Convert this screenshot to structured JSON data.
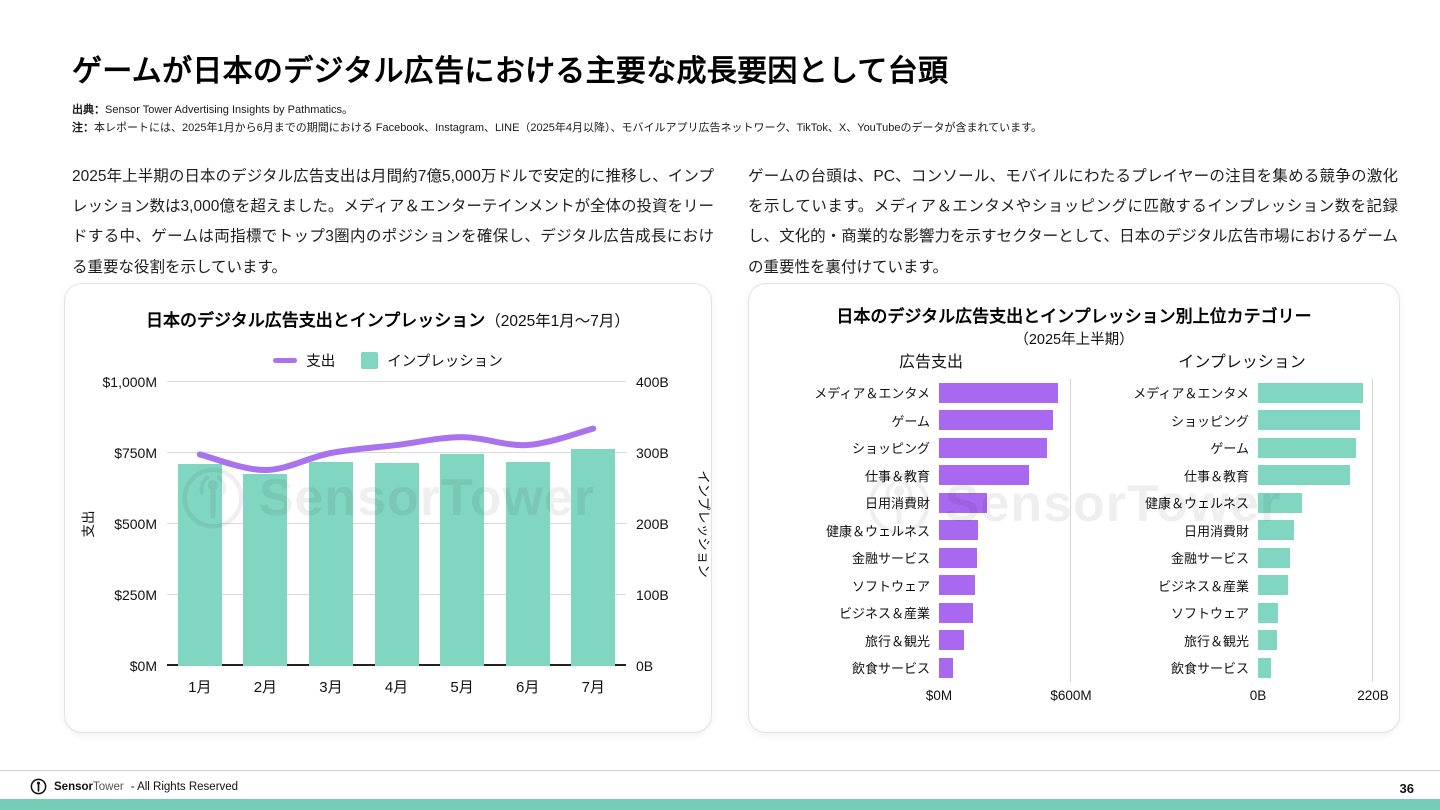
{
  "page": {
    "title": "ゲームが日本のデジタル広告における主要な成長要因として台頭",
    "source_label": "出典：",
    "source_text": "Sensor Tower Advertising Insights by Pathmatics。",
    "note_label": "注：",
    "note_text": "本レポートには、2025年1月から6月までの期間における Facebook、Instagram、LINE（2025年4月以降）、モバイルアプリ広告ネットワーク、TikTok、X、YouTubeのデータが含まれています。",
    "paragraph_left": "2025年上半期の日本のデジタル広告支出は月間約7億5,000万ドルで安定的に推移し、インプレッション数は3,000億を超えました。メディア＆エンターテインメントが全体の投資をリードする中、ゲームは両指標でトップ3圏内のポジションを確保し、デジタル広告成長における重要な役割を示しています。",
    "paragraph_right": "ゲームの台頭は、PC、コンソール、モバイルにわたるプレイヤーの注目を集める競争の激化を示しています。メディア＆エンタメやショッピングに匹敵するインプレッション数を記録し、文化的・商業的な影響力を示すセクターとして、日本のデジタル広告市場におけるゲームの重要性を裏付けています。",
    "watermark": "SensorTower",
    "footer": {
      "brand_bold": "Sensor",
      "brand_rest": "Tower",
      "rights_text": "- All Rights Reserved",
      "page_number": "36"
    }
  },
  "chart_data": [
    {
      "type": "bar-line-combo",
      "title_bold": "日本のデジタル広告支出とインプレッション",
      "title_suffix": "（2025年1月〜7月）",
      "categories": [
        "1月",
        "2月",
        "3月",
        "4月",
        "5月",
        "6月",
        "7月"
      ],
      "series": [
        {
          "name": "支出",
          "type": "line",
          "axis": "left",
          "color": "#a873ec",
          "values": [
            745,
            690,
            750,
            778,
            806,
            778,
            836
          ]
        },
        {
          "name": "インプレッション",
          "type": "bar",
          "axis": "right",
          "color": "#80d6c1",
          "values": [
            285,
            270,
            287,
            286,
            298,
            288,
            305
          ]
        }
      ],
      "left_axis": {
        "label": "支出",
        "unit": "$M",
        "min": 0,
        "max": 1000,
        "ticks": [
          "$0M",
          "$250M",
          "$500M",
          "$750M",
          "$1,000M"
        ]
      },
      "right_axis": {
        "label": "インプレッション",
        "unit": "B",
        "min": 0,
        "max": 400,
        "ticks": [
          "0B",
          "100B",
          "200B",
          "300B",
          "400B"
        ]
      },
      "grid": true,
      "legend_position": "top"
    },
    {
      "type": "bar",
      "orientation": "horizontal",
      "title": "日本のデジタル広告支出とインプレッション別上位カテゴリー",
      "subtitle": "（2025年上半期）",
      "panels": [
        {
          "name": "広告支出",
          "color": "#a868f0",
          "xlim": [
            0,
            600
          ],
          "tick_labels": [
            "$0M",
            "$600M"
          ],
          "categories": [
            "メディア＆エンタメ",
            "ゲーム",
            "ショッピング",
            "仕事＆教育",
            "日用消費財",
            "健康＆ウェルネス",
            "金融サービス",
            "ソフトウェア",
            "ビジネス＆産業",
            "旅行＆観光",
            "飲食サービス"
          ],
          "values": [
            545,
            523,
            495,
            410,
            218,
            178,
            175,
            164,
            156,
            114,
            64
          ]
        },
        {
          "name": "インプレッション",
          "color": "#80d6c1",
          "xlim": [
            0,
            220
          ],
          "tick_labels": [
            "0B",
            "220B"
          ],
          "categories": [
            "メディア＆エンタメ",
            "ショッピング",
            "ゲーム",
            "仕事＆教育",
            "健康＆ウェルネス",
            "日用消費財",
            "金融サービス",
            "ビジネス＆産業",
            "ソフトウェア",
            "旅行＆観光",
            "飲食サービス"
          ],
          "values": [
            203,
            196,
            189,
            178,
            84,
            69,
            61,
            57,
            38,
            36,
            25
          ]
        }
      ]
    }
  ]
}
